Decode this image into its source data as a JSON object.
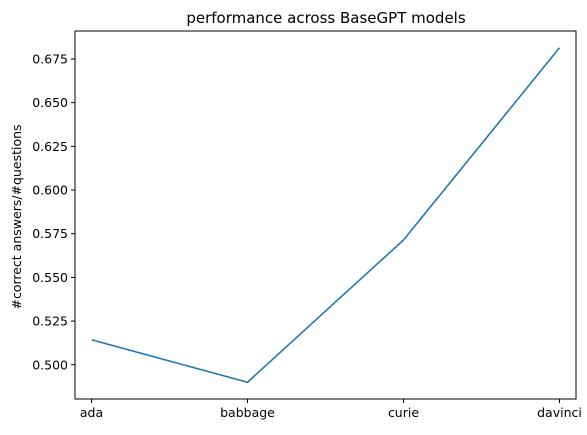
{
  "chart_data": {
    "type": "line",
    "title": "performance across BaseGPT models",
    "xlabel": "",
    "ylabel": "#correct answers/#questions",
    "categories": [
      "ada",
      "babbage",
      "curie",
      "davinci"
    ],
    "series": [
      {
        "values": [
          0.5143,
          0.49,
          0.5714,
          0.6814
        ]
      }
    ],
    "yticks": [
      0.5,
      0.525,
      0.55,
      0.575,
      0.6,
      0.625,
      0.65,
      0.675
    ],
    "ytick_labels": [
      "0.500",
      "0.525",
      "0.550",
      "0.575",
      "0.600",
      "0.625",
      "0.650",
      "0.675"
    ],
    "ylim": [
      0.4804,
      0.691
    ],
    "grid": false,
    "line_color": "#1f77b4"
  }
}
